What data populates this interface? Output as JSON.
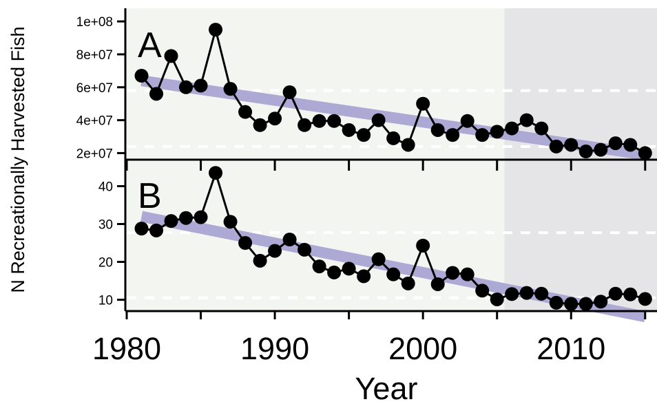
{
  "chart_data": [
    {
      "type": "line",
      "panel_label": "A",
      "x": [
        1981,
        1982,
        1983,
        1984,
        1985,
        1986,
        1987,
        1988,
        1989,
        1990,
        1991,
        1992,
        1993,
        1994,
        1995,
        1996,
        1997,
        1998,
        1999,
        2000,
        2001,
        2002,
        2003,
        2004,
        2005,
        2006,
        2007,
        2008,
        2009,
        2010,
        2011,
        2012,
        2013,
        2014,
        2015
      ],
      "values": [
        67000000,
        56000000,
        79000000,
        60000000,
        61000000,
        95000000,
        59000000,
        45000000,
        37000000,
        41000000,
        57000000,
        37000000,
        39500000,
        39500000,
        34000000,
        31000000,
        40000000,
        29000000,
        25000000,
        50000000,
        34000000,
        31000000,
        39500000,
        31000000,
        33000000,
        35000000,
        40000000,
        35000000,
        24000000,
        25000000,
        21000000,
        22000000,
        26000000,
        25000000,
        20000000
      ],
      "trend": {
        "x": [
          1981,
          2015
        ],
        "y": [
          64000000,
          19000000
        ]
      },
      "reference_lines": [
        58000000,
        24000000
      ],
      "ylim": [
        16000000,
        108000000
      ],
      "yticks": [
        20000000,
        40000000,
        60000000,
        80000000,
        100000000
      ],
      "ytick_labels": [
        "2e+07",
        "4e+07",
        "6e+07",
        "8e+07",
        "1e+08"
      ],
      "shaded_from_year": 2005.5,
      "grid": false
    },
    {
      "type": "line",
      "panel_label": "B",
      "x": [
        1981,
        1982,
        1983,
        1984,
        1985,
        1986,
        1987,
        1988,
        1989,
        1990,
        1991,
        1992,
        1993,
        1994,
        1995,
        1996,
        1997,
        1998,
        1999,
        2000,
        2001,
        2002,
        2003,
        2004,
        2005,
        2006,
        2007,
        2008,
        2009,
        2010,
        2011,
        2012,
        2013,
        2014,
        2015
      ],
      "values": [
        28.8,
        28.3,
        30.8,
        31.6,
        31.8,
        43.5,
        30.6,
        25.0,
        20.3,
        22.9,
        25.9,
        23.2,
        18.8,
        17.2,
        18.2,
        16.2,
        20.7,
        16.7,
        14.3,
        24.3,
        14.1,
        17.1,
        16.7,
        12.4,
        10.1,
        11.5,
        11.8,
        11.6,
        9.2,
        8.9,
        8.9,
        9.5,
        11.6,
        11.4,
        10.2
      ],
      "trend": {
        "x": [
          1981,
          2015
        ],
        "y": [
          32.0,
          5.5
        ]
      },
      "reference_lines": [
        27.7,
        10.5
      ],
      "ylim": [
        7,
        47
      ],
      "yticks": [
        10,
        20,
        30,
        40
      ],
      "ytick_labels": [
        "10",
        "20",
        "30",
        "40"
      ],
      "shaded_from_year": 2005.5,
      "grid": false
    }
  ],
  "axes": {
    "xlabel": "Year",
    "ylabel": "N Recreationally Harvested Fish",
    "xticks": [
      1980,
      1985,
      1990,
      1995,
      2000,
      2005,
      2010,
      2015
    ],
    "xtick_labels": [
      "1980",
      "1990",
      "2000",
      "2010"
    ],
    "xtick_label_values": [
      1980,
      1990,
      2000,
      2010
    ],
    "xlim": [
      1980,
      2015.8
    ]
  },
  "colors": {
    "panel_bg": "#f3f5f1",
    "shaded_bg": "#e5e5e7",
    "trend": "#a9a6d3",
    "points": "#000000",
    "reference_line": "#ffffff"
  }
}
